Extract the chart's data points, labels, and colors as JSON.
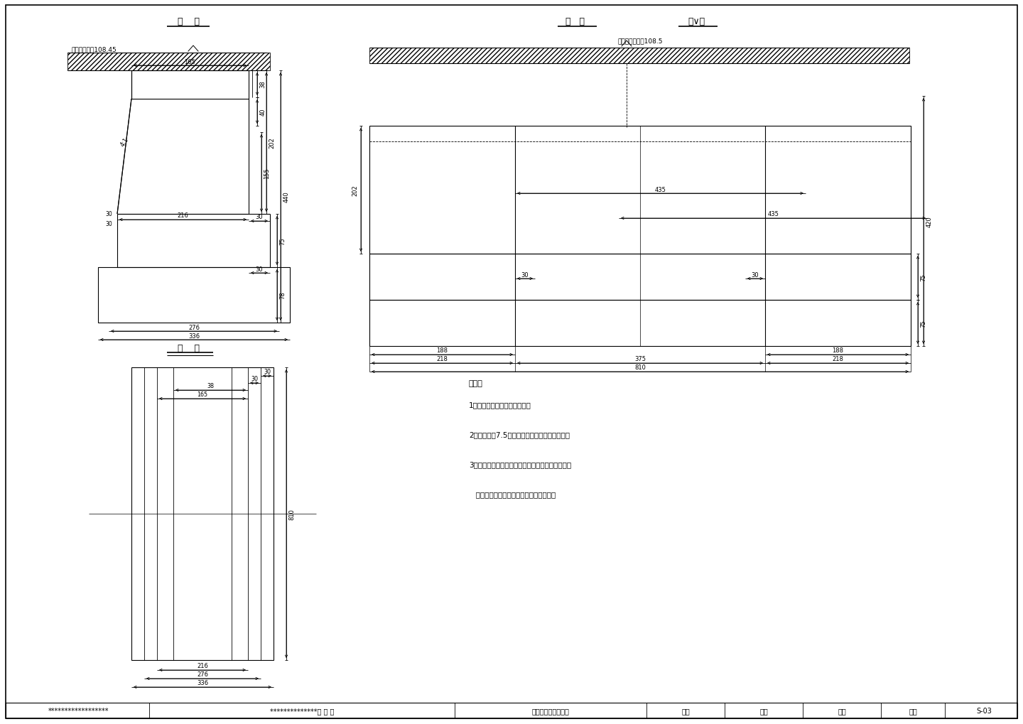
{
  "bg_color": "#ffffff",
  "line_color": "#000000",
  "view_titles": {
    "side": "侧    面",
    "front": "正   面",
    "back": "背∨面",
    "plan": "平    面"
  },
  "elevation_side": "路基边缘标高108.45",
  "elevation_front": "行车道路面标高108.5",
  "notes_title": "附注：",
  "notes": [
    "1、本图尺寸均以厘米为单位。",
    "2、桥台系用7.5号水泥沙浆牀筑，缝隙分功勾。",
    "3、本桥台不设侵墙，整个桑榘材料用透水性好的材",
    "   料填塩（如：河卤石砂砖、砖石砂等）。"
  ],
  "footer_col1": "******************",
  "footer_col2": "**************石 拱 桥",
  "footer_col3": "一、二号桥台构造图",
  "footer_col4": "设计",
  "footer_col5": "复核",
  "footer_col6": "审核",
  "footer_col7": "图号",
  "footer_col8": "S-03"
}
